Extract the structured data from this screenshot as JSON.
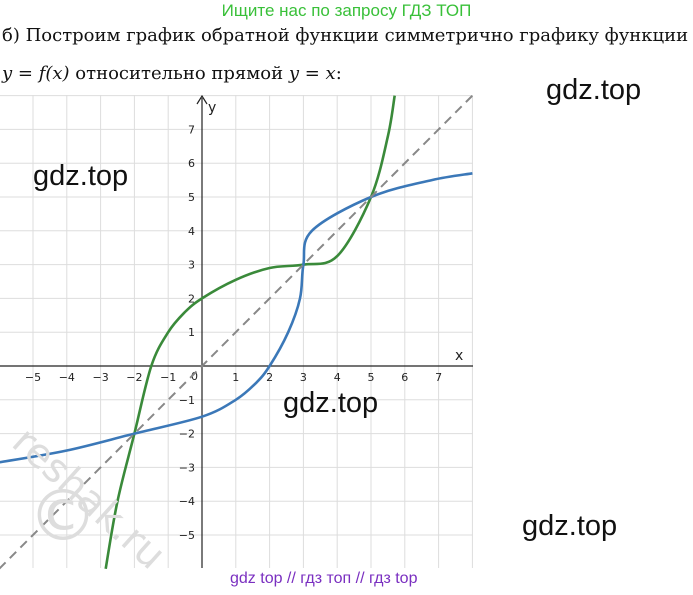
{
  "banner": "Ищите нас по запросу ГДЗ ТОП",
  "text": {
    "line1": "б) Построим график обратной функции симметрично графику функции",
    "line2_parts": [
      "y = f(x)",
      " относительно прямой ",
      "y = x",
      ":"
    ]
  },
  "watermarks": {
    "top_right": "gdz.top",
    "left": "gdz.top",
    "center": "gdz.top",
    "bottom_right": "gdz.top",
    "diagonal": "reshak.ru"
  },
  "bottom_links": "gdz top  //  гдз топ  //  гдз top",
  "colors": {
    "green": "#3a8a3a",
    "blue": "#3b78b8",
    "grid": "#dddddd",
    "diagonal": "#888888",
    "banner": "#39c039",
    "links": "#7a2fc0"
  },
  "chart_data": {
    "type": "line",
    "xlabel": "x",
    "ylabel": "y",
    "xlim": [
      -6,
      8
    ],
    "ylim": [
      -6,
      8
    ],
    "x_ticks": [
      -5,
      -4,
      -3,
      -2,
      -1,
      1,
      2,
      3,
      4,
      5,
      6,
      7
    ],
    "y_ticks": [
      -5,
      -4,
      -3,
      -2,
      -1,
      1,
      2,
      3,
      4,
      5,
      6,
      7
    ],
    "origin_label": "0",
    "grid": true,
    "series": [
      {
        "color": "green",
        "points": [
          [
            -2.85,
            -6
          ],
          [
            -2.5,
            -4
          ],
          [
            -2,
            -2
          ],
          [
            -1.5,
            0
          ],
          [
            -1,
            1
          ],
          [
            -0.5,
            1.6
          ],
          [
            0,
            2
          ],
          [
            1,
            2.55
          ],
          [
            2,
            2.9
          ],
          [
            3,
            3
          ],
          [
            4,
            3.25
          ],
          [
            5,
            5
          ],
          [
            5.5,
            6.8
          ],
          [
            5.7,
            8
          ]
        ]
      },
      {
        "color": "blue",
        "points": [
          [
            -6,
            -2.85
          ],
          [
            -4,
            -2.5
          ],
          [
            -2,
            -2
          ],
          [
            0,
            -1.5
          ],
          [
            1,
            -1
          ],
          [
            1.6,
            -0.5
          ],
          [
            2,
            0
          ],
          [
            2.55,
            1
          ],
          [
            2.9,
            2
          ],
          [
            3,
            3
          ],
          [
            3.25,
            4
          ],
          [
            5,
            5
          ],
          [
            6.8,
            5.5
          ],
          [
            8,
            5.7
          ]
        ]
      },
      {
        "color": "diagonal",
        "dashed": true,
        "points": [
          [
            -6,
            -6
          ],
          [
            8,
            8
          ]
        ]
      }
    ]
  }
}
